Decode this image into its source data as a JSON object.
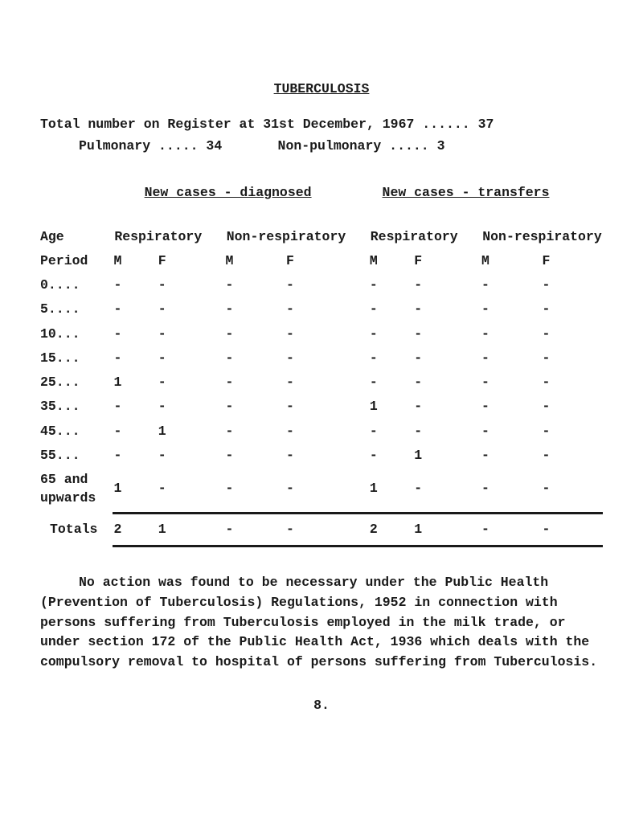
{
  "title": "TUBERCULOSIS",
  "register_line_1": "Total number on Register at 31st December, 1967 ...... 37",
  "register_line_2": "Pulmonary ..... 34       Non-pulmonary ..... 3",
  "section_heads": {
    "diagnosed": "New cases - diagnosed",
    "transfers": "New cases - transfers"
  },
  "col_heads": {
    "age_period_1": "Age",
    "age_period_2": "Period",
    "resp": "Respiratory",
    "nonresp": "Non-respiratory",
    "m": "M",
    "f": "F"
  },
  "rows": [
    {
      "period": "0....",
      "d_r_m": "-",
      "d_r_f": "-",
      "d_n_m": "-",
      "d_n_f": "-",
      "t_r_m": "-",
      "t_r_f": "-",
      "t_n_m": "-",
      "t_n_f": "-"
    },
    {
      "period": "5....",
      "d_r_m": "-",
      "d_r_f": "-",
      "d_n_m": "-",
      "d_n_f": "-",
      "t_r_m": "-",
      "t_r_f": "-",
      "t_n_m": "-",
      "t_n_f": "-"
    },
    {
      "period": "10...",
      "d_r_m": "-",
      "d_r_f": "-",
      "d_n_m": "-",
      "d_n_f": "-",
      "t_r_m": "-",
      "t_r_f": "-",
      "t_n_m": "-",
      "t_n_f": "-"
    },
    {
      "period": "15...",
      "d_r_m": "-",
      "d_r_f": "-",
      "d_n_m": "-",
      "d_n_f": "-",
      "t_r_m": "-",
      "t_r_f": "-",
      "t_n_m": "-",
      "t_n_f": "-"
    },
    {
      "period": "25...",
      "d_r_m": "1",
      "d_r_f": "-",
      "d_n_m": "-",
      "d_n_f": "-",
      "t_r_m": "-",
      "t_r_f": "-",
      "t_n_m": "-",
      "t_n_f": "-"
    },
    {
      "period": "35...",
      "d_r_m": "-",
      "d_r_f": "-",
      "d_n_m": "-",
      "d_n_f": "-",
      "t_r_m": "1",
      "t_r_f": "-",
      "t_n_m": "-",
      "t_n_f": "-"
    },
    {
      "period": "45...",
      "d_r_m": "-",
      "d_r_f": "1",
      "d_n_m": "-",
      "d_n_f": "-",
      "t_r_m": "-",
      "t_r_f": "-",
      "t_n_m": "-",
      "t_n_f": "-"
    },
    {
      "period": "55...",
      "d_r_m": "-",
      "d_r_f": "-",
      "d_n_m": "-",
      "d_n_f": "-",
      "t_r_m": "-",
      "t_r_f": "1",
      "t_n_m": "-",
      "t_n_f": "-"
    },
    {
      "period": "65 and\nupwards",
      "d_r_m": "1",
      "d_r_f": "-",
      "d_n_m": "-",
      "d_n_f": "-",
      "t_r_m": "1",
      "t_r_f": "-",
      "t_n_m": "-",
      "t_n_f": "-"
    }
  ],
  "totals": {
    "label": "Totals",
    "d_r_m": "2",
    "d_r_f": "1",
    "d_n_m": "-",
    "d_n_f": "-",
    "t_r_m": "2",
    "t_r_f": "1",
    "t_n_m": "-",
    "t_n_f": "-"
  },
  "paragraph": "No action was found to be necessary under the Public Health (Prevention of Tuberculosis) Regulations, 1952 in connection with persons suffering from Tuberculosis employed in the milk trade, or under section 172 of the Public Health Act, 1936 which deals with the compulsory removal to hospital of persons suffering from Tuberculosis.",
  "page_number": "8."
}
